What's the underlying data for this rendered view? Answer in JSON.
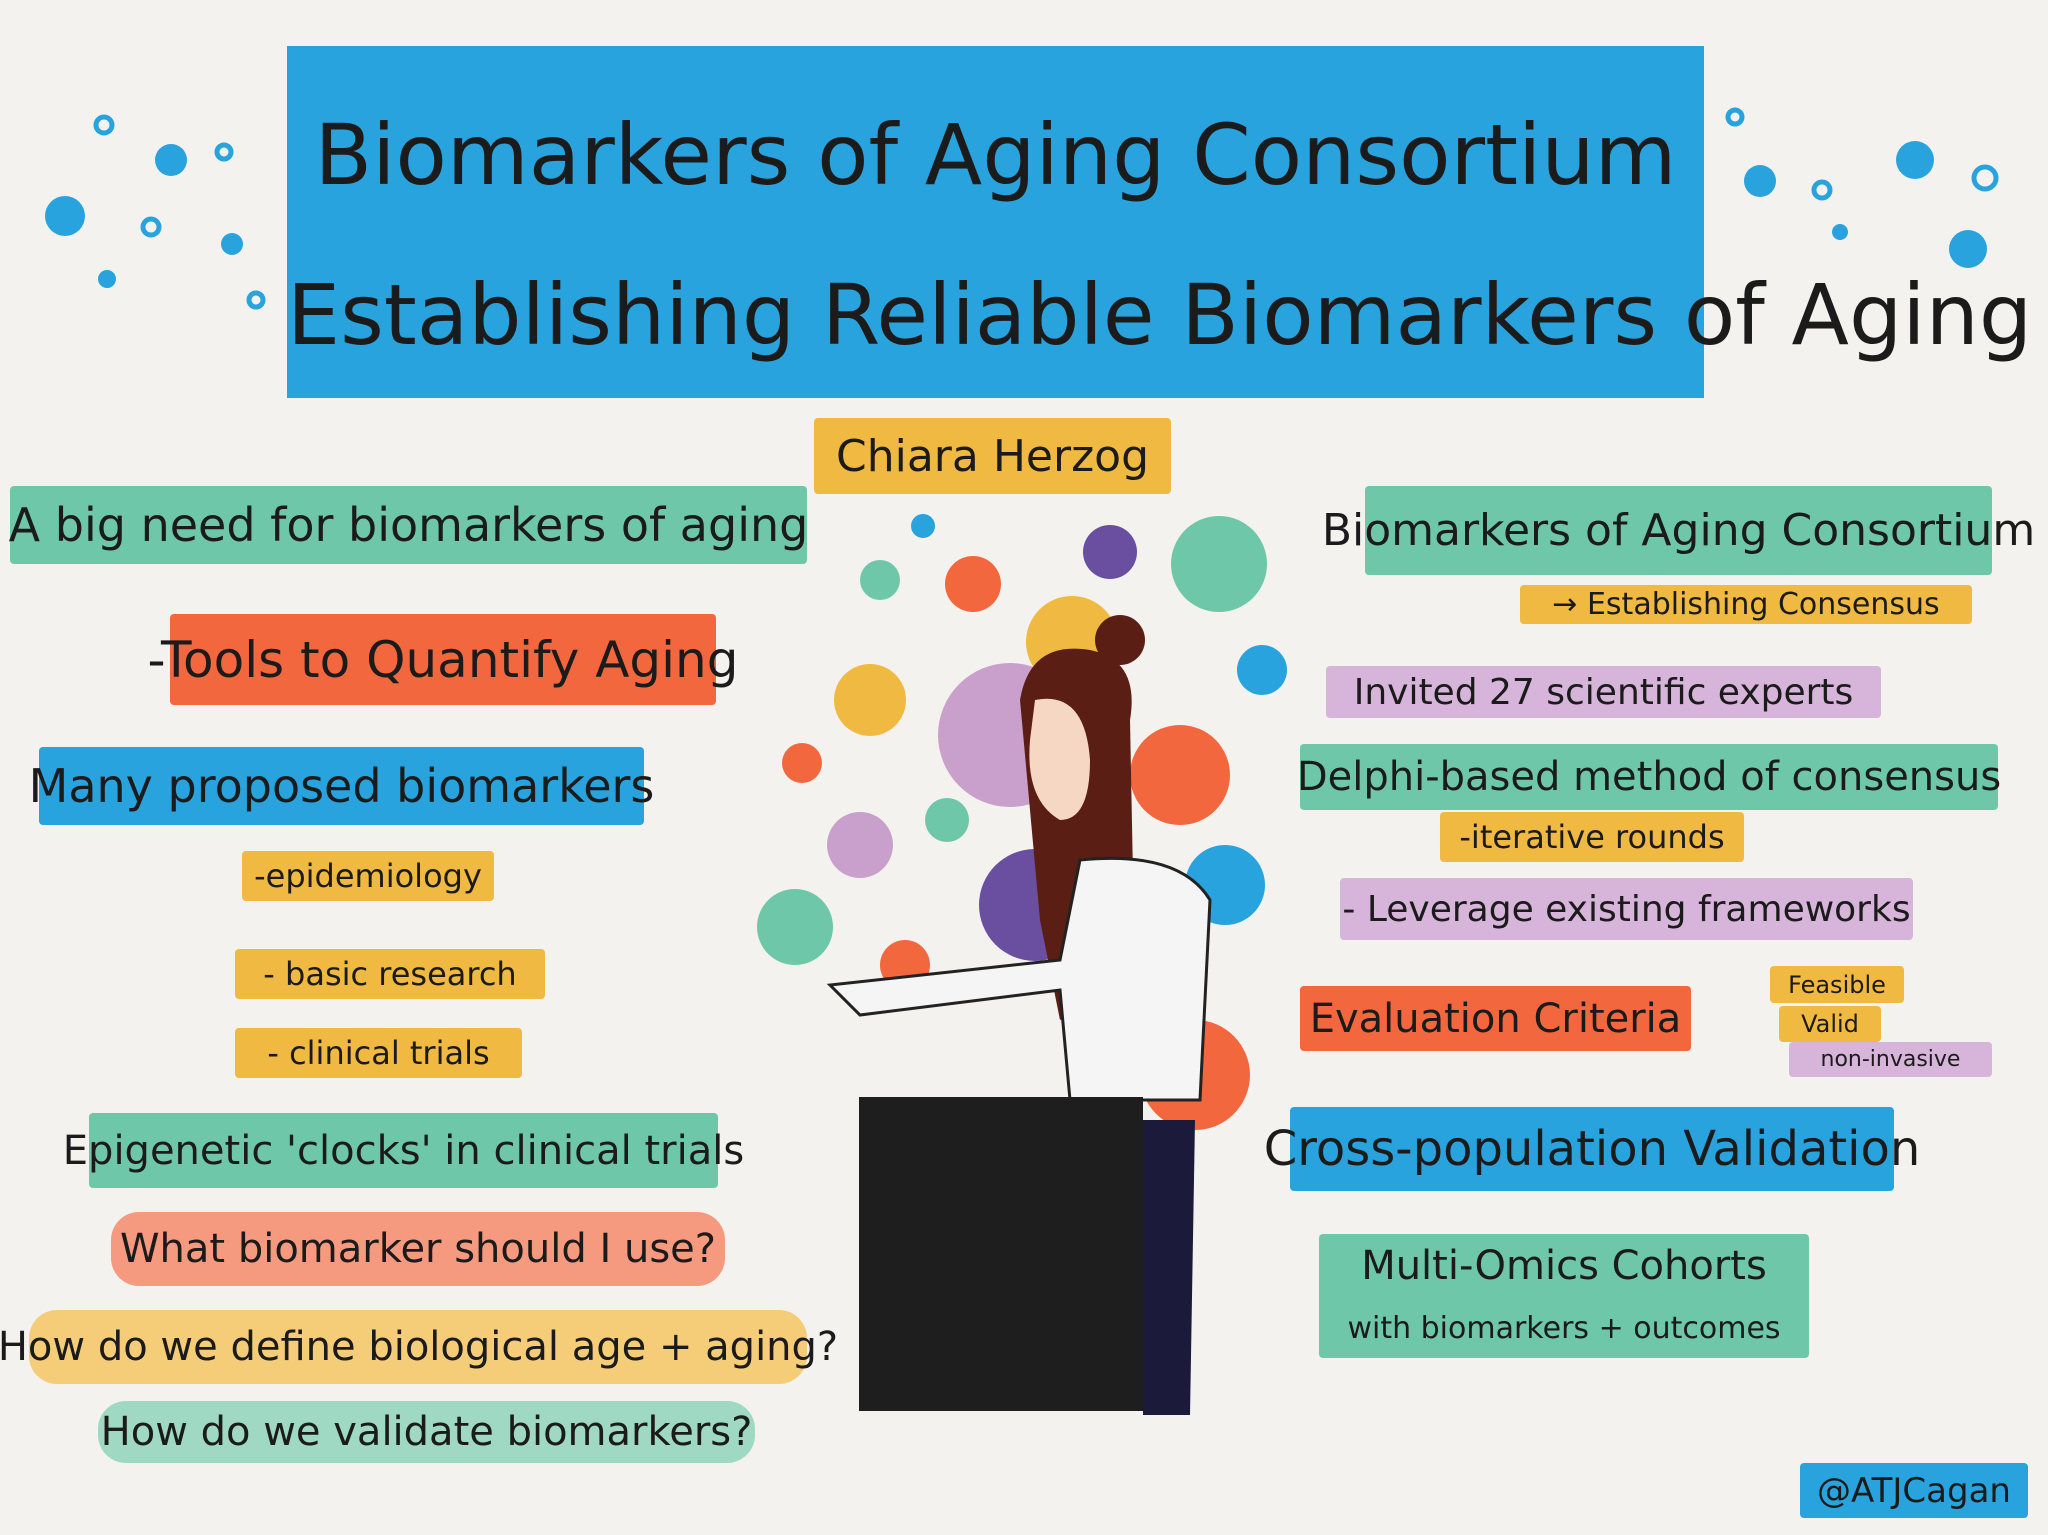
{
  "header": {
    "title_line1": "Biomarkers of Aging Consortium",
    "title_line2": "Establishing Reliable Biomarkers of Aging"
  },
  "speaker": "Chiara Herzog",
  "left_column": [
    "A big need for biomarkers of aging",
    "-Tools to Quantify Aging",
    "Many proposed biomarkers",
    "-epidemiology",
    "- basic research",
    "- clinical trials",
    "Epigenetic 'clocks' in clinical trials",
    "What biomarker should I use?",
    "How do we define biological age + aging?",
    "How do we validate biomarkers?"
  ],
  "right_column": [
    "Biomarkers of Aging Consortium",
    "→ Establishing Consensus",
    "Invited 27 scientific experts",
    "Delphi-based method of consensus",
    "-iterative rounds",
    "- Leverage existing frameworks",
    "Evaluation Criteria",
    "Feasible",
    "Valid",
    "non-invasive",
    "Cross-population Validation",
    "Multi-Omics Cohorts",
    "with biomarkers + outcomes"
  ],
  "credit": "@ATJCagan"
}
